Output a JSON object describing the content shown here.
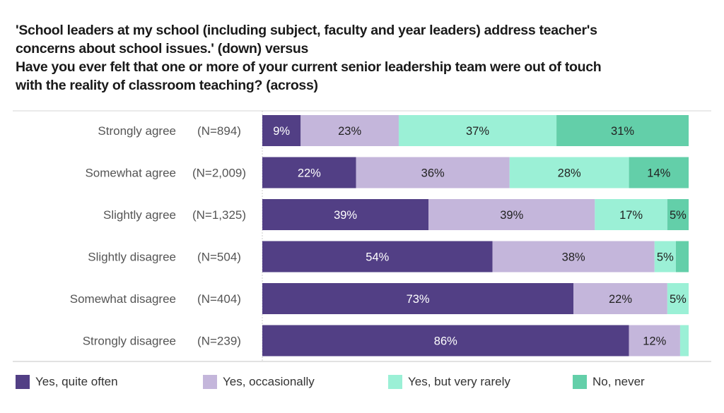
{
  "chart_data": {
    "type": "bar",
    "orientation": "horizontal",
    "stacked": true,
    "title_lines": [
      "'School leaders at my school (including subject, faculty and year leaders) address teacher's",
      "concerns about school issues.' (down) versus",
      "Have you ever felt that one or more of your current senior leadership team were out of touch",
      "with the reality of classroom teaching? (across)"
    ],
    "categories": [
      "Strongly agree",
      "Somewhat agree",
      "Slightly agree",
      "Slightly disagree",
      "Somewhat disagree",
      "Strongly disagree"
    ],
    "n_labels": [
      "(N=894)",
      "(N=2,009)",
      "(N=1,325)",
      "(N=504)",
      "(N=404)",
      "(N=239)"
    ],
    "series": [
      {
        "name": "Yes, quite often",
        "color": "#523f85",
        "label_color": "#ffffff",
        "values": [
          9,
          22,
          39,
          54,
          73,
          86
        ],
        "labels": [
          "9%",
          "22%",
          "39%",
          "54%",
          "73%",
          "86%"
        ]
      },
      {
        "name": "Yes, occasionally",
        "color": "#c4b6db",
        "label_color": "#222222",
        "values": [
          23,
          36,
          39,
          38,
          22,
          12
        ],
        "labels": [
          "23%",
          "36%",
          "39%",
          "38%",
          "22%",
          "12%"
        ]
      },
      {
        "name": "Yes, but very rarely",
        "color": "#9bf0d6",
        "label_color": "#222222",
        "values": [
          37,
          28,
          17,
          5,
          5,
          2
        ],
        "labels": [
          "37%",
          "28%",
          "17%",
          "5%",
          "5%",
          ""
        ]
      },
      {
        "name": "No, never",
        "color": "#63cfa9",
        "label_color": "#222222",
        "values": [
          31,
          14,
          5,
          3,
          0,
          0
        ],
        "labels": [
          "31%",
          "14%",
          "5%",
          "",
          "",
          ""
        ]
      }
    ],
    "xlim": [
      0,
      100
    ],
    "xlabel": "",
    "ylabel": "",
    "grid": false,
    "legend_position": "bottom"
  }
}
